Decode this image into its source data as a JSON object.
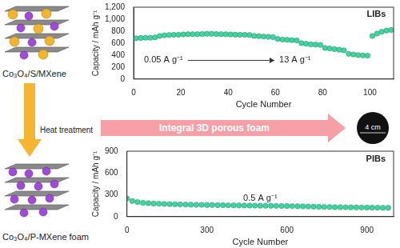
{
  "chart_data": [
    {
      "type": "scatter",
      "marker": "circle",
      "color": "#46d1a0",
      "x_label": "Cycle Number",
      "y_label": "Capacity / mAh g⁻¹",
      "annotations": [
        "LIBs",
        "0.05 A g⁻¹",
        "13 A g⁻¹"
      ],
      "xlim": [
        0,
        110
      ],
      "xticks": [
        0,
        20,
        40,
        60,
        80,
        100
      ],
      "ylim": [
        0,
        1200
      ],
      "yticks": [
        0,
        200,
        400,
        600,
        800,
        1000,
        1200
      ],
      "grid": false,
      "x": [
        1,
        3,
        5,
        7,
        9,
        11,
        13,
        15,
        17,
        19,
        21,
        23,
        25,
        27,
        29,
        31,
        33,
        35,
        37,
        39,
        41,
        43,
        45,
        47,
        49,
        51,
        53,
        55,
        57,
        59,
        61,
        63,
        65,
        67,
        69,
        71,
        73,
        75,
        77,
        79,
        81,
        83,
        85,
        87,
        89,
        91,
        93,
        95,
        97,
        99,
        101,
        103,
        105,
        107,
        109
      ],
      "values": [
        680,
        685,
        690,
        690,
        695,
        720,
        730,
        735,
        740,
        740,
        745,
        748,
        750,
        750,
        752,
        755,
        755,
        752,
        750,
        748,
        745,
        742,
        740,
        738,
        735,
        720,
        715,
        710,
        705,
        700,
        670,
        660,
        655,
        650,
        645,
        600,
        590,
        580,
        575,
        570,
        520,
        510,
        500,
        490,
        480,
        420,
        410,
        400,
        395,
        390,
        720,
        760,
        790,
        810,
        820
      ]
    },
    {
      "type": "scatter",
      "marker": "circle",
      "color": "#46d1a0",
      "x_label": "Cycle Number",
      "y_label": "Capacity / mAh g⁻¹",
      "annotations": [
        "PIBs",
        "0.5 A g⁻¹"
      ],
      "xlim": [
        0,
        1000
      ],
      "xticks": [
        0,
        300,
        600,
        900
      ],
      "ylim": [
        0,
        900
      ],
      "yticks": [
        0,
        300,
        600,
        900
      ],
      "grid": false,
      "x": [
        0,
        20,
        40,
        60,
        80,
        100,
        120,
        140,
        160,
        180,
        200,
        220,
        240,
        260,
        280,
        300,
        320,
        340,
        360,
        380,
        400,
        420,
        440,
        460,
        480,
        500,
        520,
        540,
        560,
        580,
        600,
        620,
        640,
        660,
        680,
        700,
        720,
        740,
        760,
        780,
        800,
        820,
        840,
        860,
        880,
        900,
        920,
        940,
        960,
        980
      ],
      "values": [
        250,
        215,
        200,
        190,
        185,
        180,
        178,
        175,
        172,
        170,
        168,
        166,
        165,
        163,
        162,
        160,
        160,
        158,
        157,
        156,
        155,
        154,
        153,
        152,
        151,
        150,
        150,
        149,
        148,
        147,
        146,
        145,
        144,
        142,
        140,
        138,
        136,
        134,
        132,
        130,
        130,
        129,
        128,
        127,
        126,
        125,
        124,
        123,
        122,
        121
      ]
    }
  ],
  "diagram": {
    "top_image_label": "Co₃O₄/S/MXene",
    "heat_label": "Heat treatment",
    "bottom_image_label": "Co₃O₄/P-MXene foam",
    "arrow_label": "Integral 3D porous foam",
    "sample_label": "4 cm"
  }
}
